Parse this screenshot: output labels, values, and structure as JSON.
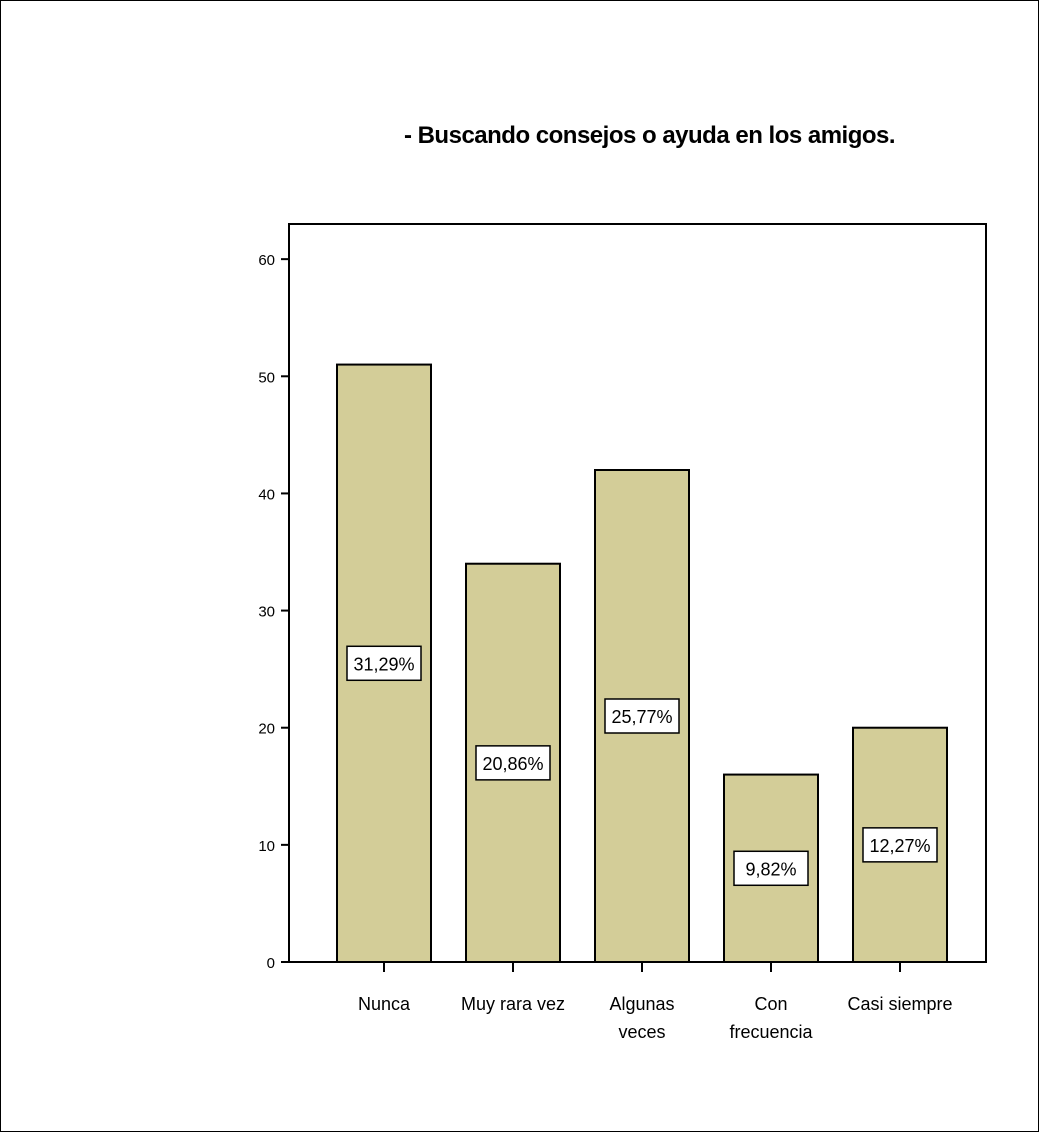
{
  "chart_data": {
    "type": "bar",
    "title": "- Buscando consejos o ayuda en los amigos.",
    "xlabel": "",
    "ylabel": "",
    "categories": [
      [
        "Nunca"
      ],
      [
        "Muy rara vez"
      ],
      [
        "Algunas",
        "veces"
      ],
      [
        "Con",
        "frecuencia"
      ],
      [
        "Casi siempre"
      ]
    ],
    "values": [
      51,
      34,
      42,
      16,
      20
    ],
    "data_labels": [
      "31,29%",
      "20,86%",
      "25,77%",
      "9,82%",
      "12,27%"
    ],
    "ylim": [
      0,
      63
    ],
    "yticks": [
      0,
      10,
      20,
      30,
      40,
      50,
      60
    ],
    "grid": false,
    "colors": {
      "bar_fill": "#d3cd98",
      "bar_stroke": "#000000",
      "label_box": "#ffffff"
    }
  }
}
